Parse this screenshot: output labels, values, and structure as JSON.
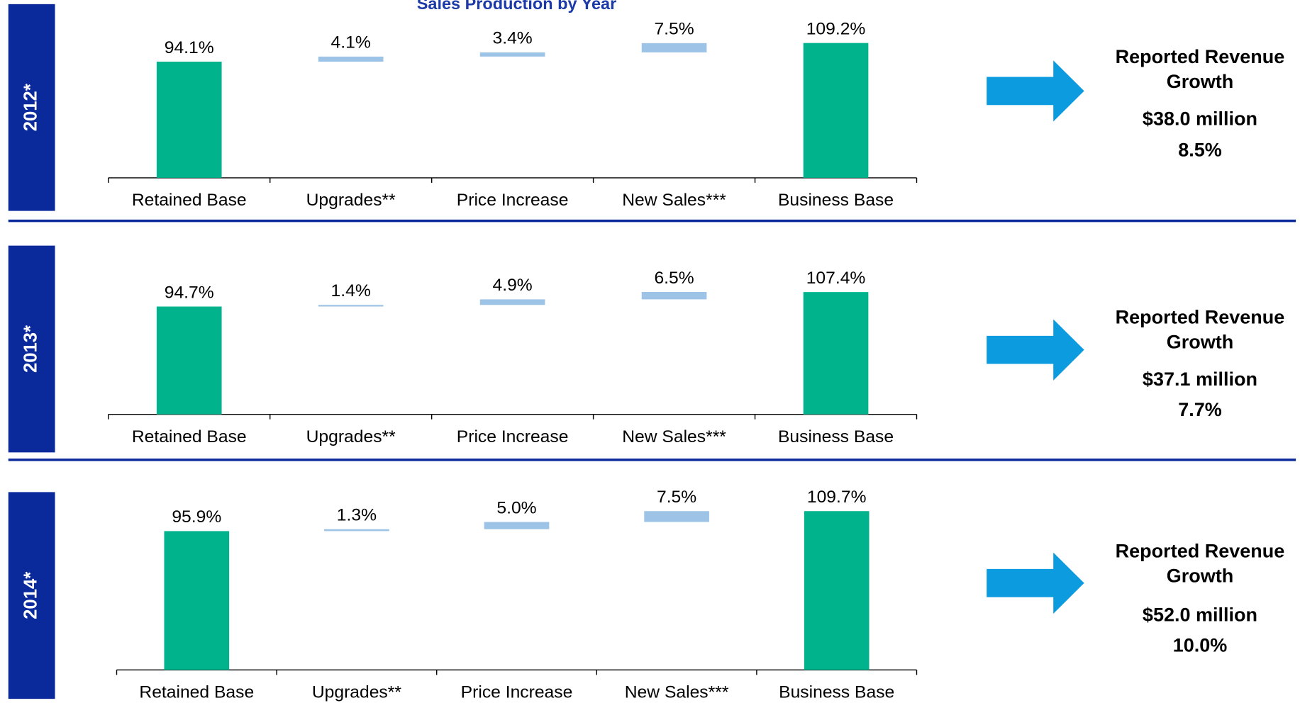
{
  "chart_data": [
    {
      "type": "waterfall",
      "title": "Sales Production by Year",
      "year": "2012*",
      "categories": [
        "Retained Base",
        "Upgrades**",
        "Price Increase",
        "New Sales***",
        "Business Base"
      ],
      "values": [
        94.1,
        4.1,
        3.4,
        7.5,
        109.2
      ],
      "value_labels": [
        "94.1%",
        "4.1%",
        "3.4%",
        "7.5%",
        "109.2%"
      ],
      "colors": [
        "#00b38d",
        "#9dc3e6",
        "#9dc3e6",
        "#9dc3e6",
        "#00b38d"
      ],
      "annotation": {
        "heading": [
          "Reported Revenue",
          "Growth"
        ],
        "amount": "$38.0 million",
        "percent": "8.5%"
      }
    },
    {
      "type": "waterfall",
      "year": "2013*",
      "categories": [
        "Retained Base",
        "Upgrades**",
        "Price Increase",
        "New Sales***",
        "Business Base"
      ],
      "values": [
        94.7,
        1.4,
        4.9,
        6.5,
        107.4
      ],
      "value_labels": [
        "94.7%",
        "1.4%",
        "4.9%",
        "6.5%",
        "107.4%"
      ],
      "colors": [
        "#00b38d",
        "#9dc3e6",
        "#9dc3e6",
        "#9dc3e6",
        "#00b38d"
      ],
      "annotation": {
        "heading": [
          "Reported Revenue",
          "Growth"
        ],
        "amount": "$37.1 million",
        "percent": "7.7%"
      }
    },
    {
      "type": "waterfall",
      "year": "2014*",
      "categories": [
        "Retained Base",
        "Upgrades**",
        "Price Increase",
        "New Sales***",
        "Business Base"
      ],
      "values": [
        95.9,
        1.3,
        5.0,
        7.5,
        109.7
      ],
      "value_labels": [
        "95.9%",
        "1.3%",
        "5.0%",
        "7.5%",
        "109.7%"
      ],
      "colors": [
        "#00b38d",
        "#9dc3e6",
        "#9dc3e6",
        "#9dc3e6",
        "#00b38d"
      ],
      "annotation": {
        "heading": [
          "Reported Revenue",
          "Growth"
        ],
        "amount": "$52.0 million",
        "percent": "10.0%"
      }
    }
  ]
}
